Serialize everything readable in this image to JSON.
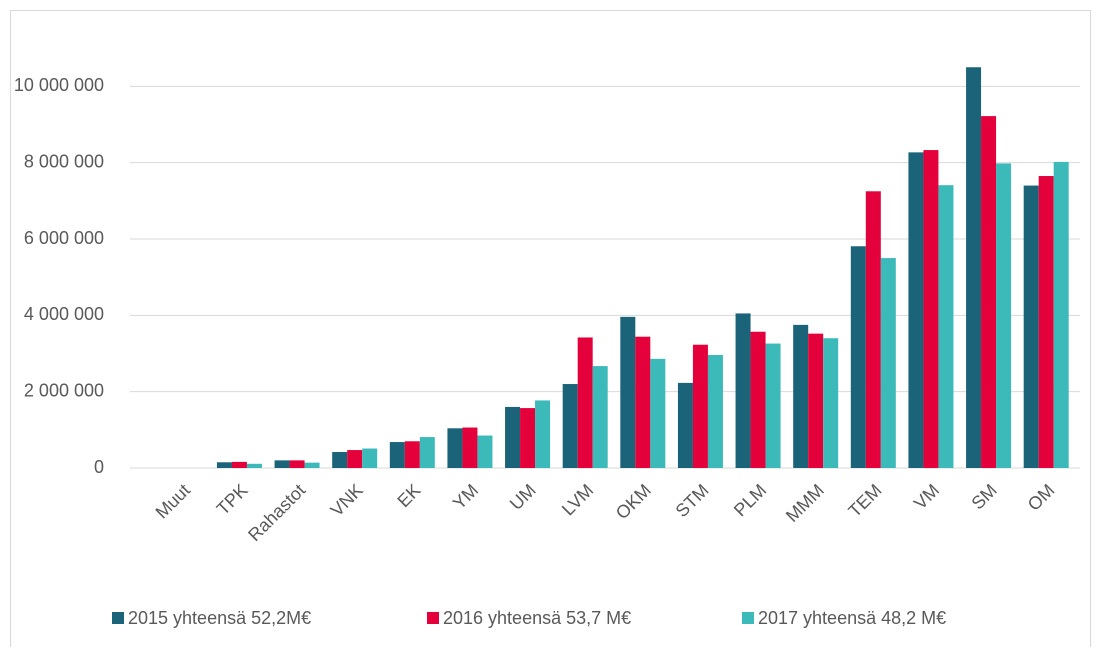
{
  "chart_data": {
    "type": "bar",
    "categories": [
      "Muut",
      "TPK",
      "Rahastot",
      "VNK",
      "EK",
      "YM",
      "UM",
      "LVM",
      "OKM",
      "STM",
      "PLM",
      "MMM",
      "TEM",
      "VM",
      "SM",
      "OM"
    ],
    "series": [
      {
        "name": "2015 yhteensä 52,2M€",
        "color": "#1b6378",
        "values": [
          0,
          150000,
          200000,
          420000,
          680000,
          1040000,
          1600000,
          2200000,
          3960000,
          2230000,
          4050000,
          3750000,
          5810000,
          8270000,
          10500000,
          7400000
        ]
      },
      {
        "name": "2016 yhteensä 53,7 M€",
        "color": "#e4003a",
        "values": [
          0,
          160000,
          200000,
          470000,
          700000,
          1060000,
          1570000,
          3420000,
          3440000,
          3230000,
          3570000,
          3520000,
          7250000,
          8330000,
          9220000,
          7650000
        ]
      },
      {
        "name": "2017 yhteensä 48,2 M€",
        "color": "#3cb9b9",
        "values": [
          0,
          110000,
          140000,
          510000,
          810000,
          850000,
          1770000,
          2670000,
          2860000,
          2960000,
          3260000,
          3400000,
          5500000,
          7410000,
          7980000,
          8020000
        ]
      }
    ],
    "ylim": [
      0,
      12000000
    ],
    "yticks": [
      0,
      {
        "value": 2000000,
        "label": "2 000 000"
      },
      {
        "value": 4000000,
        "label": "4 000 000"
      },
      {
        "value": 6000000,
        "label": "6 000 000"
      },
      {
        "value": 8000000,
        "label": "8 000 000"
      },
      {
        "value": 10000000,
        "label": "10 000 000"
      }
    ],
    "grid": true,
    "legend": "bottom"
  }
}
